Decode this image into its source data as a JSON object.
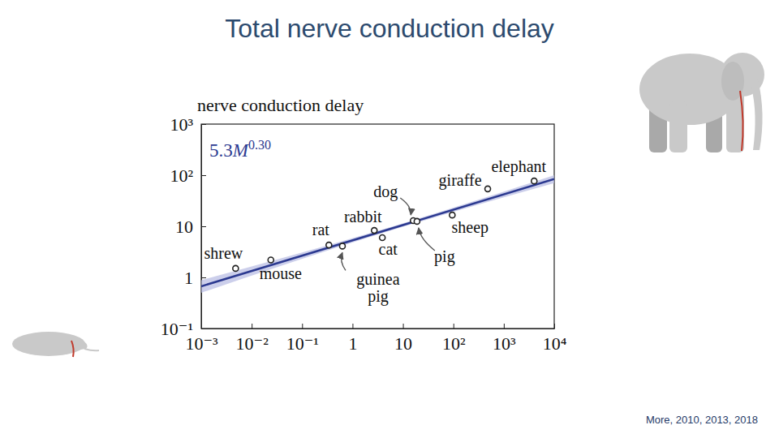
{
  "chart_data": {
    "type": "scatter",
    "title": "Total nerve conduction delay",
    "y_label": "nerve conduction delay",
    "citation": "More, 2010,  2013, 2018",
    "log": true,
    "xlim": [
      0.001,
      10000
    ],
    "ylim": [
      0.1,
      1000
    ],
    "xticks": [
      {
        "value": 0.001,
        "label": "10⁻³"
      },
      {
        "value": 0.01,
        "label": "10⁻²"
      },
      {
        "value": 0.1,
        "label": "10⁻¹"
      },
      1,
      10,
      {
        "value": 100,
        "label": "10²"
      },
      {
        "value": 1000,
        "label": "10³"
      },
      {
        "value": 10000,
        "label": "10⁴"
      }
    ],
    "yticks": [
      {
        "value": 0.1,
        "label": "10⁻¹"
      },
      1,
      10,
      {
        "value": 100,
        "label": "10²"
      },
      {
        "value": 1000,
        "label": "10³"
      }
    ],
    "annotations": [
      {
        "text": "5.3",
        "variable": "M",
        "exponent": "0.30"
      }
    ],
    "series": [
      {
        "type": "band",
        "color": "#b7bbe3",
        "x": [
          0.001,
          3,
          10000
        ],
        "lower": [
          0.5,
          6.8,
          70
        ],
        "upper": [
          0.88,
          8.0,
          100
        ]
      },
      {
        "type": "line",
        "color": "#2b3990",
        "line_style": "solid",
        "x": [
          0.001,
          10000
        ],
        "values": [
          0.67,
          84
        ]
      },
      {
        "type": "scatter",
        "color": "#222222",
        "marker": "circle",
        "labels": [
          "shrew",
          "mouse",
          "rat",
          "guinea pig",
          "rabbit",
          "cat",
          "dog",
          "pig",
          "sheep",
          "giraffe",
          "elephant"
        ],
        "x": [
          0.0048,
          0.024,
          0.34,
          0.63,
          2.7,
          3.9,
          16,
          19,
          95,
          480,
          4000
        ],
        "values": [
          1.5,
          2.2,
          4.3,
          4.1,
          8.3,
          6.0,
          12.9,
          12.5,
          16.6,
          54,
          77
        ]
      }
    ]
  }
}
